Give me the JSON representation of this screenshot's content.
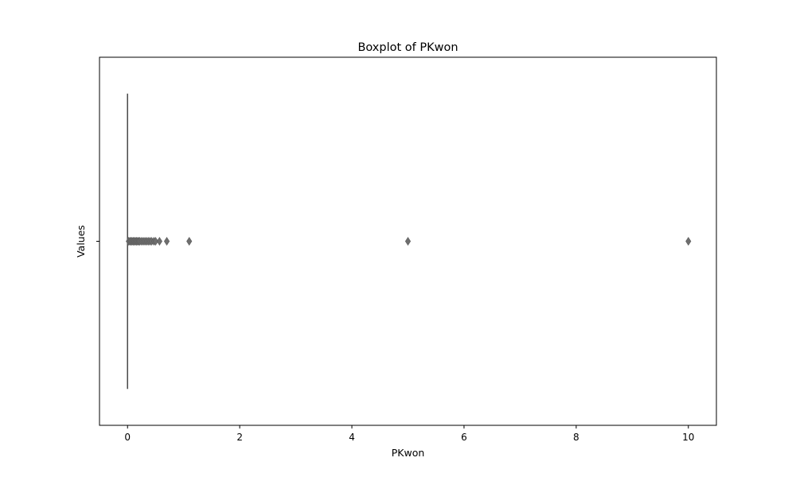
{
  "chart_data": {
    "type": "boxplot",
    "title": "Boxplot of PKwon",
    "xlabel": "PKwon",
    "ylabel": "Values",
    "orientation": "horizontal",
    "xlim": [
      -0.5,
      10.5
    ],
    "xticks": [
      0,
      2,
      4,
      6,
      8,
      10
    ],
    "xtick_labels": [
      "0",
      "2",
      "4",
      "6",
      "8",
      "10"
    ],
    "yticks": [
      ""
    ],
    "grid": false,
    "box": {
      "min": 0,
      "q1": 0,
      "median": 0,
      "q3": 0,
      "max": 0
    },
    "outliers": [
      0.02,
      0.04,
      0.06,
      0.08,
      0.1,
      0.12,
      0.14,
      0.16,
      0.18,
      0.2,
      0.22,
      0.25,
      0.28,
      0.31,
      0.34,
      0.37,
      0.4,
      0.43,
      0.47,
      0.5,
      0.57,
      0.7,
      1.1,
      5,
      10
    ],
    "colors": {
      "box": "#4d4d4d",
      "flier": "#6e6e6e",
      "axes": "#000000"
    }
  }
}
